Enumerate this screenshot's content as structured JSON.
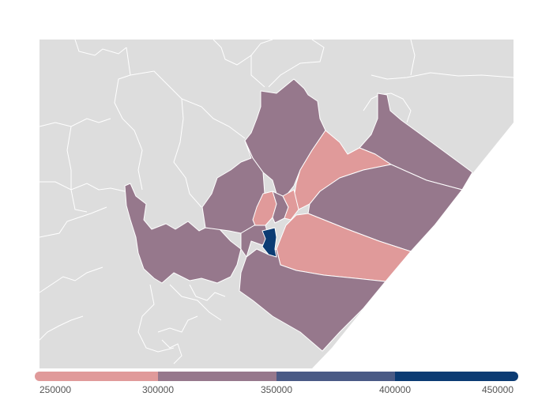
{
  "map": {
    "type": "choropleth",
    "colors": {
      "background_land": "#dddddd",
      "sea": "#ffffff",
      "region_border": "#ffffff",
      "class_1": "#e09a9a",
      "class_2": "#96788c",
      "class_3": "#4a5a85",
      "class_4": "#0b3b73"
    },
    "regions": [
      {
        "id": "north-central",
        "class": 2
      },
      {
        "id": "northeast-tip",
        "class": 2
      },
      {
        "id": "northeast-middle",
        "class": 1
      },
      {
        "id": "east-band",
        "class": 2
      },
      {
        "id": "southeast-wedge",
        "class": 1
      },
      {
        "id": "south-large",
        "class": 2
      },
      {
        "id": "west-lobe",
        "class": 2
      },
      {
        "id": "west-upper",
        "class": 2
      },
      {
        "id": "center-small-a",
        "class": 1
      },
      {
        "id": "center-small-b",
        "class": 2
      },
      {
        "id": "center-small-c",
        "class": 1
      },
      {
        "id": "center-small-d",
        "class": 2
      },
      {
        "id": "capital",
        "class": 4
      }
    ]
  },
  "legend": {
    "ticks": [
      "250000",
      "300000",
      "350000",
      "400000",
      "450000"
    ],
    "bins": [
      {
        "from": 250000,
        "to": 300000,
        "color": "#e09a9a"
      },
      {
        "from": 300000,
        "to": 350000,
        "color": "#96788c"
      },
      {
        "from": 350000,
        "to": 400000,
        "color": "#4a5a85"
      },
      {
        "from": 400000,
        "to": 450000,
        "color": "#0b3b73"
      }
    ]
  }
}
